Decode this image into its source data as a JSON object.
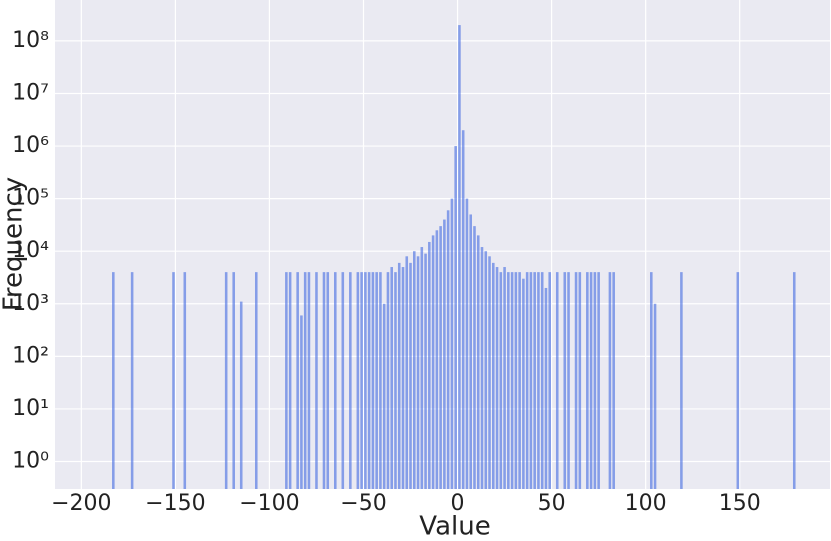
{
  "chart_data": {
    "type": "histogram",
    "xlabel": "Value",
    "ylabel": "Frequency",
    "bins": [
      -184,
      -182,
      -180,
      -178,
      -176,
      -174,
      -172,
      -170,
      -168,
      -166,
      -164,
      -162,
      -160,
      -158,
      -156,
      -154,
      -152,
      -150,
      -148,
      -146,
      -144,
      -142,
      -140,
      -138,
      -136,
      -134,
      -132,
      -130,
      -128,
      -126,
      -124,
      -122,
      -120,
      -118,
      -116,
      -114,
      -112,
      -110,
      -108,
      -106,
      -104,
      -102,
      -100,
      -98,
      -96,
      -94,
      -92,
      -90,
      -88,
      -86,
      -84,
      -82,
      -80,
      -78,
      -76,
      -74,
      -72,
      -70,
      -68,
      -66,
      -64,
      -62,
      -60,
      -58,
      -56,
      -54,
      -52,
      -50,
      -48,
      -46,
      -44,
      -42,
      -40,
      -38,
      -36,
      -34,
      -32,
      -30,
      -28,
      -26,
      -24,
      -22,
      -20,
      -18,
      -16,
      -14,
      -12,
      -10,
      -8,
      -6,
      -4,
      -2,
      0,
      2,
      4,
      6,
      8,
      10,
      12,
      14,
      16,
      18,
      20,
      22,
      24,
      26,
      28,
      30,
      32,
      34,
      36,
      38,
      40,
      42,
      44,
      46,
      48,
      50,
      52,
      54,
      56,
      58,
      60,
      62,
      64,
      66,
      68,
      70,
      72,
      74,
      76,
      78,
      80,
      82,
      84,
      86,
      88,
      90,
      92,
      94,
      96,
      98,
      100,
      102,
      104,
      106,
      108,
      110,
      112,
      114,
      116,
      118,
      120,
      122,
      124,
      126,
      128,
      130,
      132,
      134,
      136,
      138,
      140,
      142,
      144,
      146,
      148,
      150,
      152,
      154,
      156,
      158,
      160,
      162,
      164,
      166,
      168,
      170,
      172,
      174,
      176,
      178,
      180,
      182
    ],
    "counts": [
      4000,
      0,
      0,
      0,
      0,
      4000,
      0,
      0,
      0,
      0,
      0,
      0,
      0,
      0,
      0,
      0,
      4000,
      0,
      0,
      4000,
      0,
      0,
      0,
      0,
      0,
      0,
      0,
      0,
      0,
      0,
      4000,
      0,
      4000,
      0,
      1100,
      0,
      0,
      0,
      4000,
      0,
      0,
      0,
      0,
      0,
      0,
      0,
      4000,
      4000,
      0,
      4000,
      600,
      4000,
      4000,
      0,
      4000,
      0,
      4000,
      4000,
      0,
      4000,
      0,
      4000,
      0,
      4000,
      0,
      4000,
      4000,
      4000,
      4000,
      4000,
      4000,
      4000,
      1000,
      4000,
      5000,
      4000,
      6000,
      5000,
      8000,
      6000,
      10000,
      8000,
      12000,
      9000,
      15000,
      20000,
      25000,
      30000,
      40000,
      60000,
      100000,
      1000000,
      200000000,
      2000000,
      100000,
      50000,
      30000,
      20000,
      12000,
      10000,
      8000,
      6000,
      5000,
      4000,
      5000,
      4000,
      4000,
      4000,
      4000,
      3000,
      4000,
      4000,
      4000,
      4000,
      4000,
      2000,
      4000,
      0,
      4000,
      0,
      4000,
      4000,
      0,
      4000,
      4000,
      0,
      4000,
      4000,
      4000,
      4000,
      0,
      0,
      4000,
      4000,
      0,
      0,
      0,
      0,
      0,
      0,
      0,
      0,
      0,
      4000,
      1000,
      0,
      0,
      0,
      0,
      0,
      0,
      4000,
      0,
      0,
      0,
      0,
      0,
      0,
      0,
      0,
      0,
      0,
      0,
      0,
      0,
      0,
      4000,
      0,
      0,
      0,
      0,
      0,
      0,
      0,
      0,
      0,
      0,
      0,
      0,
      0,
      0,
      4000,
      0
    ],
    "color": "#4169e1",
    "alpha": 0.6,
    "grid": true,
    "yscale": "log",
    "xlim": [
      -214,
      198
    ],
    "xticks": [
      {
        "value": -200,
        "label": "−200"
      },
      {
        "value": -150,
        "label": "−150"
      },
      {
        "value": -100,
        "label": "−100"
      },
      {
        "value": -50,
        "label": "−50"
      },
      0,
      50,
      100,
      150
    ],
    "ylim": [
      0.3,
      600000000
    ],
    "yticks": [
      {
        "value": 1,
        "label": "10⁰"
      },
      {
        "value": 10,
        "label": "10¹"
      },
      {
        "value": 100,
        "label": "10²"
      },
      {
        "value": 1000,
        "label": "10³"
      },
      {
        "value": 10000,
        "label": "10⁴"
      },
      {
        "value": 100000,
        "label": "10⁵"
      },
      {
        "value": 1000000,
        "label": "10⁶"
      },
      {
        "value": 10000000,
        "label": "10⁷"
      },
      {
        "value": 100000000,
        "label": "10⁸"
      }
    ]
  }
}
